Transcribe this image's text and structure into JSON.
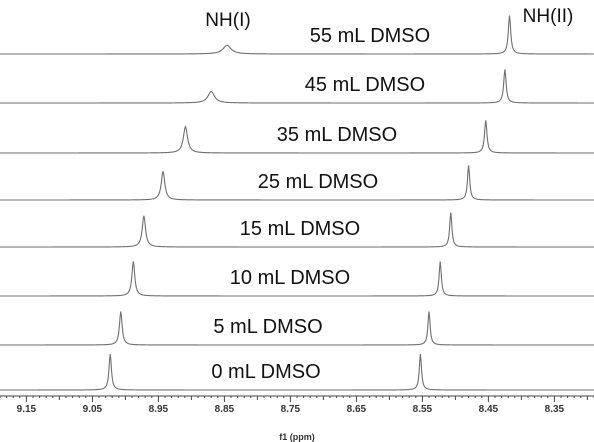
{
  "chart_data": {
    "type": "line",
    "title": "",
    "xlabel": "f1 (ppm)",
    "ylabel": "",
    "xlim": [
      9.19,
      8.29
    ],
    "x_reversed": true,
    "x_ticks": [
      9.15,
      9.05,
      8.95,
      8.85,
      8.75,
      8.65,
      8.55,
      8.45,
      8.35
    ],
    "x_tick_labels": [
      "9.15",
      "9.05",
      "8.95",
      "8.85",
      "8.75",
      "8.65",
      "8.55",
      "8.45",
      "8.35"
    ],
    "grid": false,
    "legend": "none",
    "peak_annotations": [
      {
        "label": "NH(I)"
      },
      {
        "label": "NH(II)"
      }
    ],
    "series": [
      {
        "name": "55 mL DMSO",
        "peaks": [
          {
            "ppm": 8.846,
            "height": 0.18,
            "width": 0.0075
          },
          {
            "ppm": 8.418,
            "height": 0.8,
            "width": 0.0022
          }
        ]
      },
      {
        "name": "45 mL DMSO",
        "peaks": [
          {
            "ppm": 8.87,
            "height": 0.24,
            "width": 0.006
          },
          {
            "ppm": 8.425,
            "height": 0.7,
            "width": 0.0022
          }
        ]
      },
      {
        "name": "35 mL DMSO",
        "peaks": [
          {
            "ppm": 8.909,
            "height": 0.55,
            "width": 0.0038
          },
          {
            "ppm": 8.454,
            "height": 0.68,
            "width": 0.0022
          }
        ]
      },
      {
        "name": "25 mL DMSO",
        "peaks": [
          {
            "ppm": 8.943,
            "height": 0.6,
            "width": 0.0032
          },
          {
            "ppm": 8.48,
            "height": 0.72,
            "width": 0.002
          }
        ]
      },
      {
        "name": "15 mL DMSO",
        "peaks": [
          {
            "ppm": 8.972,
            "height": 0.65,
            "width": 0.003
          },
          {
            "ppm": 8.507,
            "height": 0.72,
            "width": 0.002
          }
        ]
      },
      {
        "name": "10 mL DMSO",
        "peaks": [
          {
            "ppm": 8.988,
            "height": 0.72,
            "width": 0.0026
          },
          {
            "ppm": 8.523,
            "height": 0.72,
            "width": 0.002
          }
        ]
      },
      {
        "name": "5 mL DMSO",
        "peaks": [
          {
            "ppm": 9.007,
            "height": 0.7,
            "width": 0.0024
          },
          {
            "ppm": 8.54,
            "height": 0.7,
            "width": 0.002
          }
        ]
      },
      {
        "name": "0 mL DMSO",
        "peaks": [
          {
            "ppm": 9.023,
            "height": 0.75,
            "width": 0.0022
          },
          {
            "ppm": 8.553,
            "height": 0.75,
            "width": 0.002
          }
        ]
      }
    ]
  }
}
